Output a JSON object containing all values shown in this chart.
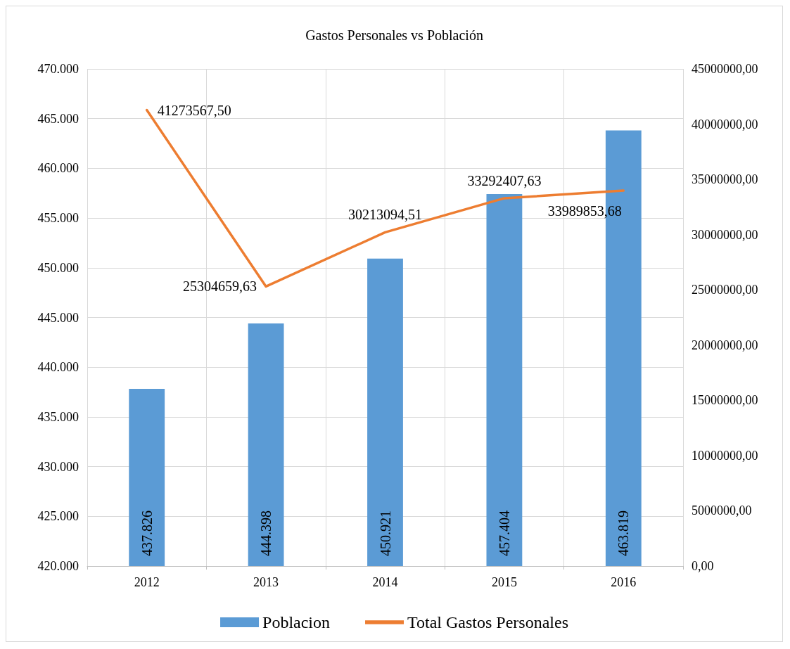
{
  "chart_data": {
    "type": "bar",
    "title": "Gastos Personales vs Población",
    "categories": [
      "2012",
      "2013",
      "2014",
      "2015",
      "2016"
    ],
    "series": [
      {
        "name": "Poblacion",
        "color": "#5b9bd5",
        "values": [
          437826,
          444398,
          450921,
          457404,
          463819
        ],
        "value_labels": [
          "437.826",
          "444.398",
          "450.921",
          "457.404",
          "463.819"
        ]
      },
      {
        "name": "Total Gastos Personales",
        "type": "line",
        "axis": "y2",
        "color": "#ed7d31",
        "values": [
          41273567.5,
          25304659.63,
          30213094.51,
          33292407.63,
          33989853.68
        ],
        "value_labels": [
          "41273567,50",
          "25304659,63",
          "30213094,51",
          "33292407,63",
          "33989853,68"
        ]
      }
    ],
    "ylim": [
      420000,
      470000
    ],
    "yticks": [
      {
        "value": 420000,
        "label": "420.000"
      },
      {
        "value": 425000,
        "label": "425.000"
      },
      {
        "value": 430000,
        "label": "430.000"
      },
      {
        "value": 435000,
        "label": "435.000"
      },
      {
        "value": 440000,
        "label": "440.000"
      },
      {
        "value": 445000,
        "label": "445.000"
      },
      {
        "value": 450000,
        "label": "450.000"
      },
      {
        "value": 455000,
        "label": "455.000"
      },
      {
        "value": 460000,
        "label": "460.000"
      },
      {
        "value": 465000,
        "label": "465.000"
      },
      {
        "value": 470000,
        "label": "470.000"
      }
    ],
    "y2lim": [
      0,
      45000000
    ],
    "y2ticks": [
      {
        "value": 0,
        "label": "0,00"
      },
      {
        "value": 5000000,
        "label": "5000000,00"
      },
      {
        "value": 10000000,
        "label": "10000000,00"
      },
      {
        "value": 15000000,
        "label": "15000000,00"
      },
      {
        "value": 20000000,
        "label": "20000000,00"
      },
      {
        "value": 25000000,
        "label": "25000000,00"
      },
      {
        "value": 30000000,
        "label": "30000000,00"
      },
      {
        "value": 35000000,
        "label": "35000000,00"
      },
      {
        "value": 40000000,
        "label": "40000000,00"
      },
      {
        "value": 45000000,
        "label": "45000000,00"
      }
    ],
    "grid": true,
    "legend": "bottom",
    "marker": "none",
    "line_style": "solid"
  }
}
